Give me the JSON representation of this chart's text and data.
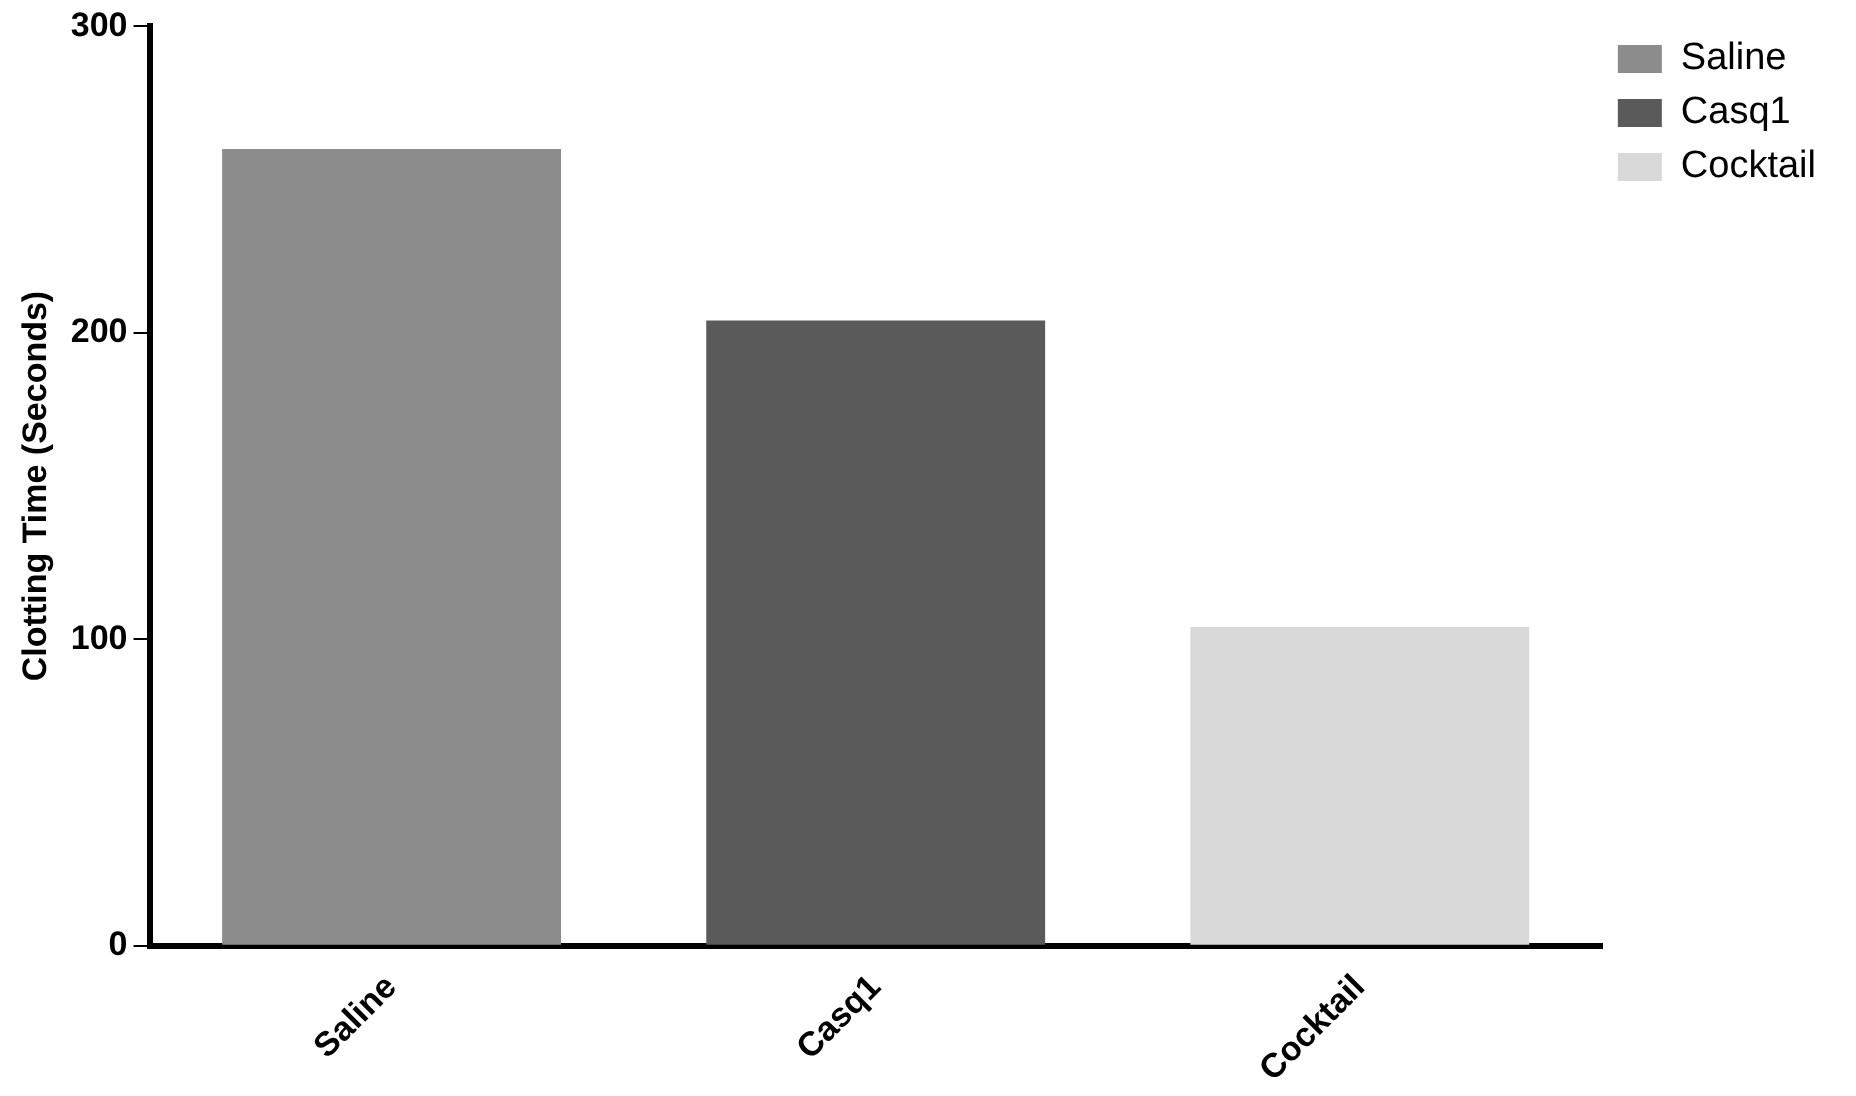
{
  "chart_data": {
    "type": "bar",
    "ylabel": "Clotting Time (Seconds)",
    "categories": [
      "Saline",
      "Casq1",
      "Cocktail"
    ],
    "series": [
      {
        "name": "Saline",
        "color": "#8c8c8c",
        "values": [
          260,
          null,
          null
        ]
      },
      {
        "name": "Casq1",
        "color": "#5a5a5a",
        "values": [
          null,
          204,
          null
        ]
      },
      {
        "name": "Cocktail",
        "color": "#d9d9d9",
        "values": [
          null,
          null,
          104
        ]
      }
    ],
    "ylim": [
      0,
      300
    ],
    "yticks": [
      0,
      100,
      200,
      300
    ],
    "grid": false,
    "legend": "top right"
  }
}
